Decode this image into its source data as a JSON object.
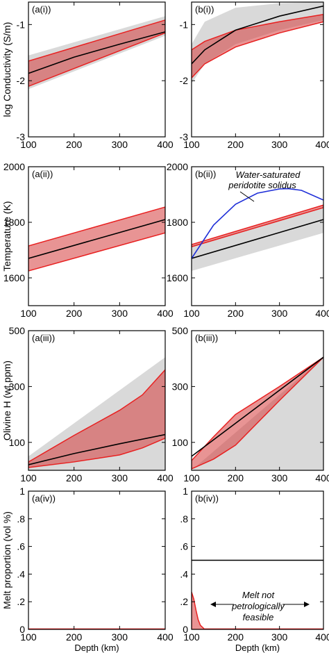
{
  "chart_data": [
    {
      "type": "area",
      "panel_label": "(a(i))",
      "ylabel": "log Conductivity (S/m)",
      "xlim": [
        100,
        400
      ],
      "ylim": [
        -3,
        -0.6
      ],
      "xticks": [
        100,
        200,
        300,
        400
      ],
      "yticks": [
        -3,
        -2,
        -1
      ],
      "ytick_labels": [
        "-3",
        "-2",
        "-1"
      ],
      "gray_band": {
        "x": [
          100,
          400
        ],
        "lower": [
          -2.15,
          -1.2
        ],
        "upper": [
          -1.55,
          -0.85
        ]
      },
      "red_band": {
        "x": [
          100,
          400
        ],
        "lower": [
          -2.1,
          -1.15
        ],
        "upper": [
          -1.65,
          -0.92
        ]
      },
      "lines": [
        {
          "color": "#000000",
          "x": [
            100,
            200,
            300,
            400
          ],
          "y": [
            -1.87,
            -1.58,
            -1.35,
            -1.13
          ]
        }
      ]
    },
    {
      "type": "area",
      "panel_label": "(b(i))",
      "xlim": [
        100,
        400
      ],
      "ylim": [
        -3,
        -0.6
      ],
      "xticks": [
        100,
        200,
        300,
        400
      ],
      "yticks": [
        -3,
        -2,
        -1
      ],
      "ytick_labels": [
        "-3",
        "-2",
        "-1"
      ],
      "gray_band": {
        "x": [
          100,
          130,
          200,
          300,
          400
        ],
        "lower": [
          -2.05,
          -1.7,
          -1.35,
          -1.1,
          -0.92
        ],
        "upper": [
          -1.35,
          -0.95,
          -0.7,
          -0.62,
          -0.6
        ]
      },
      "red_band": {
        "x": [
          100,
          130,
          200,
          300,
          400
        ],
        "lower": [
          -1.95,
          -1.7,
          -1.4,
          -1.15,
          -0.95
        ],
        "upper": [
          -1.45,
          -1.3,
          -1.1,
          -0.95,
          -0.82
        ]
      },
      "lines": [
        {
          "color": "#000000",
          "x": [
            100,
            130,
            200,
            300,
            400
          ],
          "y": [
            -1.7,
            -1.45,
            -1.1,
            -0.85,
            -0.67
          ]
        }
      ]
    },
    {
      "type": "area",
      "panel_label": "(a(ii))",
      "ylabel": "Temperature (K)",
      "xlim": [
        100,
        400
      ],
      "ylim": [
        1500,
        2000
      ],
      "xticks": [
        100,
        200,
        300,
        400
      ],
      "yticks": [
        1600,
        1800,
        2000
      ],
      "ytick_labels": [
        "1600",
        "1800",
        "2000"
      ],
      "red_band": {
        "x": [
          100,
          400
        ],
        "lower": [
          1625,
          1762
        ],
        "upper": [
          1715,
          1855
        ]
      },
      "lines": [
        {
          "color": "#000000",
          "x": [
            100,
            400
          ],
          "y": [
            1670,
            1810
          ]
        }
      ]
    },
    {
      "type": "area",
      "panel_label": "(b(ii))",
      "annotation": "Water-saturated peridotite solidus",
      "xlim": [
        100,
        400
      ],
      "ylim": [
        1500,
        2000
      ],
      "xticks": [
        100,
        200,
        300,
        400
      ],
      "yticks": [
        1600,
        1800,
        2000
      ],
      "ytick_labels": [
        "1600",
        "1800",
        "2000"
      ],
      "gray_band": {
        "x": [
          100,
          400
        ],
        "lower": [
          1625,
          1762
        ],
        "upper": [
          1715,
          1855
        ]
      },
      "red_band": {
        "x": [
          100,
          400
        ],
        "lower": [
          1712,
          1853
        ],
        "upper": [
          1720,
          1862
        ]
      },
      "lines": [
        {
          "color": "#000000",
          "x": [
            100,
            400
          ],
          "y": [
            1670,
            1810
          ]
        },
        {
          "color": "#1f2fd8",
          "x": [
            100,
            150,
            200,
            250,
            300,
            320,
            350,
            400
          ],
          "y": [
            1670,
            1790,
            1865,
            1905,
            1920,
            1921,
            1915,
            1880
          ]
        }
      ]
    },
    {
      "type": "area",
      "panel_label": "(a(iii))",
      "ylabel": "Olivine H (wt ppm)",
      "xlim": [
        100,
        400
      ],
      "ylim": [
        0,
        500
      ],
      "xticks": [
        100,
        200,
        300,
        400
      ],
      "yticks": [
        100,
        300,
        500
      ],
      "ytick_labels": [
        "100",
        "300",
        "500"
      ],
      "gray_band": {
        "x": [
          100,
          400
        ],
        "lower": [
          0,
          0
        ],
        "upper": [
          50,
          405
        ]
      },
      "red_band": {
        "x": [
          100,
          200,
          300,
          350,
          400
        ],
        "lower": [
          10,
          30,
          55,
          80,
          115
        ],
        "upper": [
          30,
          125,
          215,
          270,
          360
        ]
      },
      "lines": [
        {
          "color": "#000000",
          "x": [
            100,
            200,
            300,
            400
          ],
          "y": [
            20,
            60,
            95,
            128
          ]
        }
      ]
    },
    {
      "type": "area",
      "panel_label": "(b(iii))",
      "xlim": [
        100,
        400
      ],
      "ylim": [
        0,
        500
      ],
      "xticks": [
        100,
        200,
        300,
        400
      ],
      "yticks": [
        100,
        300,
        500
      ],
      "ytick_labels": [
        "100",
        "300",
        "500"
      ],
      "gray_band": {
        "x": [
          100,
          400
        ],
        "lower": [
          0,
          0
        ],
        "upper": [
          0,
          405
        ]
      },
      "red_band": {
        "x": [
          100,
          150,
          200,
          300,
          400
        ],
        "lower": [
          5,
          40,
          90,
          250,
          405
        ],
        "upper": [
          35,
          120,
          200,
          300,
          405
        ]
      },
      "lines": [
        {
          "color": "#000000",
          "x": [
            100,
            400
          ],
          "y": [
            50,
            405
          ]
        }
      ]
    },
    {
      "type": "line",
      "panel_label": "(a(iv))",
      "ylabel": "Melt proportion (vol %)",
      "xlabel": "Depth (km)",
      "xlim": [
        100,
        400
      ],
      "ylim": [
        0,
        1
      ],
      "xticks": [
        100,
        200,
        300,
        400
      ],
      "yticks": [
        0,
        0.2,
        0.4,
        0.6,
        0.8,
        1
      ],
      "ytick_labels": [
        "0",
        ".2",
        ".4",
        ".6",
        ".8",
        "1"
      ],
      "lines": [
        {
          "color": "#e82020",
          "x": [
            100,
            400
          ],
          "y": [
            0.003,
            0.003
          ]
        }
      ]
    },
    {
      "type": "line",
      "panel_label": "(b(iv))",
      "xlabel": "Depth (km)",
      "annotation": "Melt not petrologically feasible",
      "xlim": [
        100,
        400
      ],
      "ylim": [
        0,
        1
      ],
      "xticks": [
        100,
        200,
        300,
        400
      ],
      "yticks": [
        0,
        0.2,
        0.4,
        0.6,
        0.8,
        1
      ],
      "ytick_labels": [
        "0",
        ".2",
        ".4",
        ".6",
        ".8",
        "1"
      ],
      "red_band": {
        "x": [
          100,
          105,
          110,
          115,
          120,
          130
        ],
        "lower": [
          0,
          0,
          0,
          0,
          0,
          0
        ],
        "upper": [
          0.27,
          0.22,
          0.14,
          0.07,
          0.03,
          0.0
        ]
      },
      "lines": [
        {
          "color": "#000000",
          "x": [
            100,
            400
          ],
          "y": [
            0.5,
            0.5
          ]
        },
        {
          "color": "#e82020",
          "x": [
            130,
            400
          ],
          "y": [
            0.003,
            0.003
          ]
        }
      ]
    }
  ]
}
